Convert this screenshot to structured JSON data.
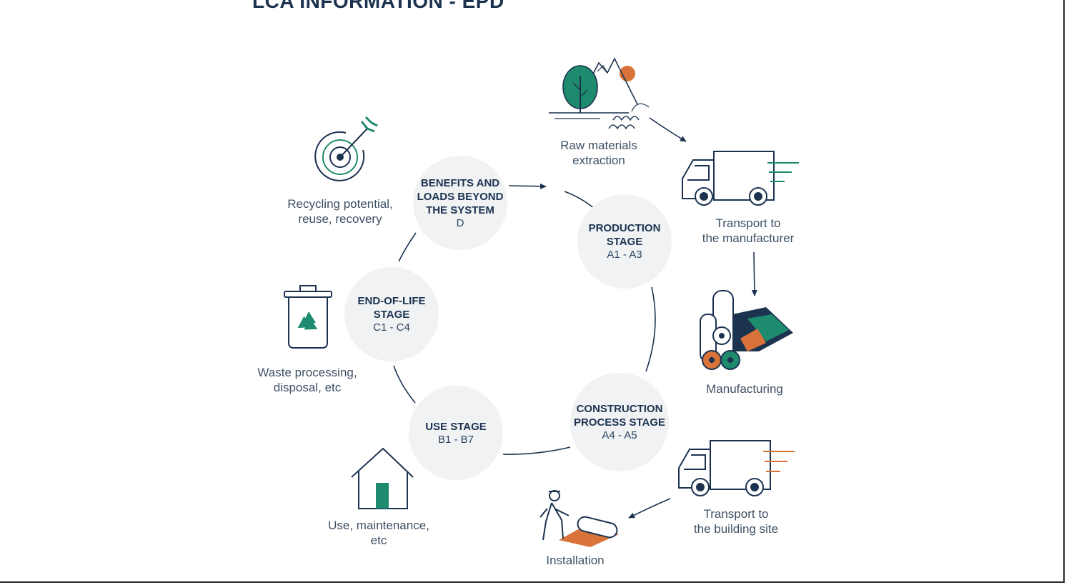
{
  "title": "LCA INFORMATION - EPD",
  "stages": {
    "production": {
      "name": "PRODUCTION\nSTAGE",
      "code": "A1 - A3"
    },
    "construction": {
      "name": "CONSTRUCTION\nPROCESS STAGE",
      "code": "A4 -  A5"
    },
    "use": {
      "name": "USE STAGE",
      "code": "B1 - B7"
    },
    "end_of_life": {
      "name": "END-OF-LIFE\nSTAGE",
      "code": "C1 - C4"
    },
    "benefits": {
      "name": "BENEFITS AND\nLOADS BEYOND\nTHE SYSTEM",
      "code": "D"
    }
  },
  "captions": {
    "raw_materials": "Raw materials\nextraction",
    "transport_manufacturer": "Transport to\nthe manufacturer",
    "manufacturing": "Manufacturing",
    "transport_site": "Transport to\nthe building site",
    "installation": "Installation",
    "use": "Use, maintenance,\netc",
    "waste": "Waste processing,\ndisposal, etc",
    "recycling": "Recycling potential,\nreuse, recovery"
  },
  "colors": {
    "navy": "#1c3350",
    "green": "#1e8a6e",
    "orange": "#d9733a",
    "circle_fill": "#f0f2f4"
  }
}
